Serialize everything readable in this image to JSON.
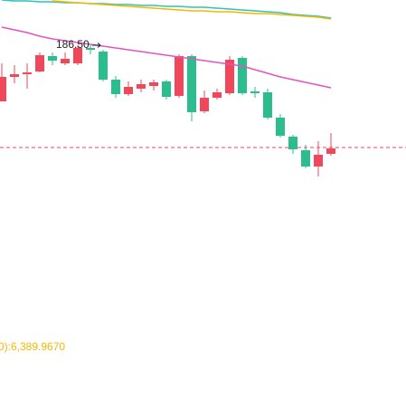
{
  "chart_data": {
    "type": "candlestick",
    "ylim": [
      182.58,
      187.0
    ],
    "up_color": "#f0475a",
    "down_color": "#2bbd8e",
    "open": [
      185.88,
      186.15,
      186.18,
      186.21,
      186.38,
      186.3,
      186.3,
      186.47,
      186.43,
      186.12,
      185.96,
      186.02,
      186.05,
      186.1,
      185.94,
      186.38,
      185.77,
      185.92,
      185.97,
      186.36,
      185.99,
      185.98,
      185.7,
      185.49,
      185.34,
      185.16,
      185.3
    ],
    "high": [
      186.3,
      186.28,
      186.3,
      186.42,
      186.42,
      186.42,
      186.5,
      186.5,
      186.45,
      186.16,
      186.1,
      186.12,
      186.12,
      186.12,
      186.4,
      186.4,
      186.0,
      186.02,
      186.38,
      186.38,
      186.04,
      186.02,
      185.74,
      185.51,
      185.4,
      185.44,
      185.53
    ],
    "low": [
      185.88,
      186.08,
      186.02,
      186.2,
      186.28,
      186.28,
      186.28,
      186.4,
      186.1,
      185.92,
      185.94,
      185.98,
      186.0,
      185.9,
      185.92,
      185.66,
      185.75,
      185.9,
      185.95,
      185.95,
      185.92,
      185.68,
      185.48,
      185.3,
      185.14,
      185.05,
      185.28
    ],
    "close": [
      186.15,
      186.18,
      186.2,
      186.39,
      186.33,
      186.35,
      186.47,
      186.45,
      186.12,
      185.96,
      186.04,
      186.07,
      186.09,
      185.93,
      186.38,
      185.76,
      185.92,
      185.98,
      186.34,
      185.97,
      185.97,
      185.7,
      185.5,
      185.35,
      185.16,
      185.29,
      185.36
    ],
    "series": [
      {
        "color": "#2ec4b6",
        "values": [
          187.0,
          186.99,
          186.99,
          186.98,
          186.98,
          186.97,
          186.97,
          186.96,
          186.96,
          186.95,
          186.95,
          186.94,
          186.94,
          186.93,
          186.93,
          186.92,
          186.92,
          186.91,
          186.9,
          186.89,
          186.88,
          186.87,
          186.86,
          186.84,
          186.83,
          186.82,
          186.8
        ]
      },
      {
        "color": "#f5b800",
        "values": [
          null,
          null,
          null,
          null,
          186.99,
          186.98,
          186.97,
          186.96,
          186.95,
          186.94,
          186.93,
          186.92,
          186.91,
          186.9,
          186.89,
          186.88,
          186.88,
          186.87,
          186.87,
          186.86,
          186.85,
          186.85,
          186.84,
          186.83,
          186.82,
          186.81,
          186.79
        ]
      },
      {
        "color": "#e055c0",
        "values": [
          186.7,
          186.67,
          186.64,
          186.6,
          186.57,
          186.55,
          186.53,
          186.51,
          186.49,
          186.47,
          186.45,
          186.43,
          186.41,
          186.39,
          186.37,
          186.35,
          186.33,
          186.31,
          186.29,
          186.27,
          186.23,
          186.19,
          186.15,
          186.12,
          186.09,
          186.06,
          186.03
        ]
      }
    ],
    "price_line": 185.37,
    "price_line_color": "#f0475a",
    "max_label": "186.50",
    "max_index": 6,
    "indicator_label": "0):6,389.9670",
    "indicator_color": "#f5b800"
  }
}
